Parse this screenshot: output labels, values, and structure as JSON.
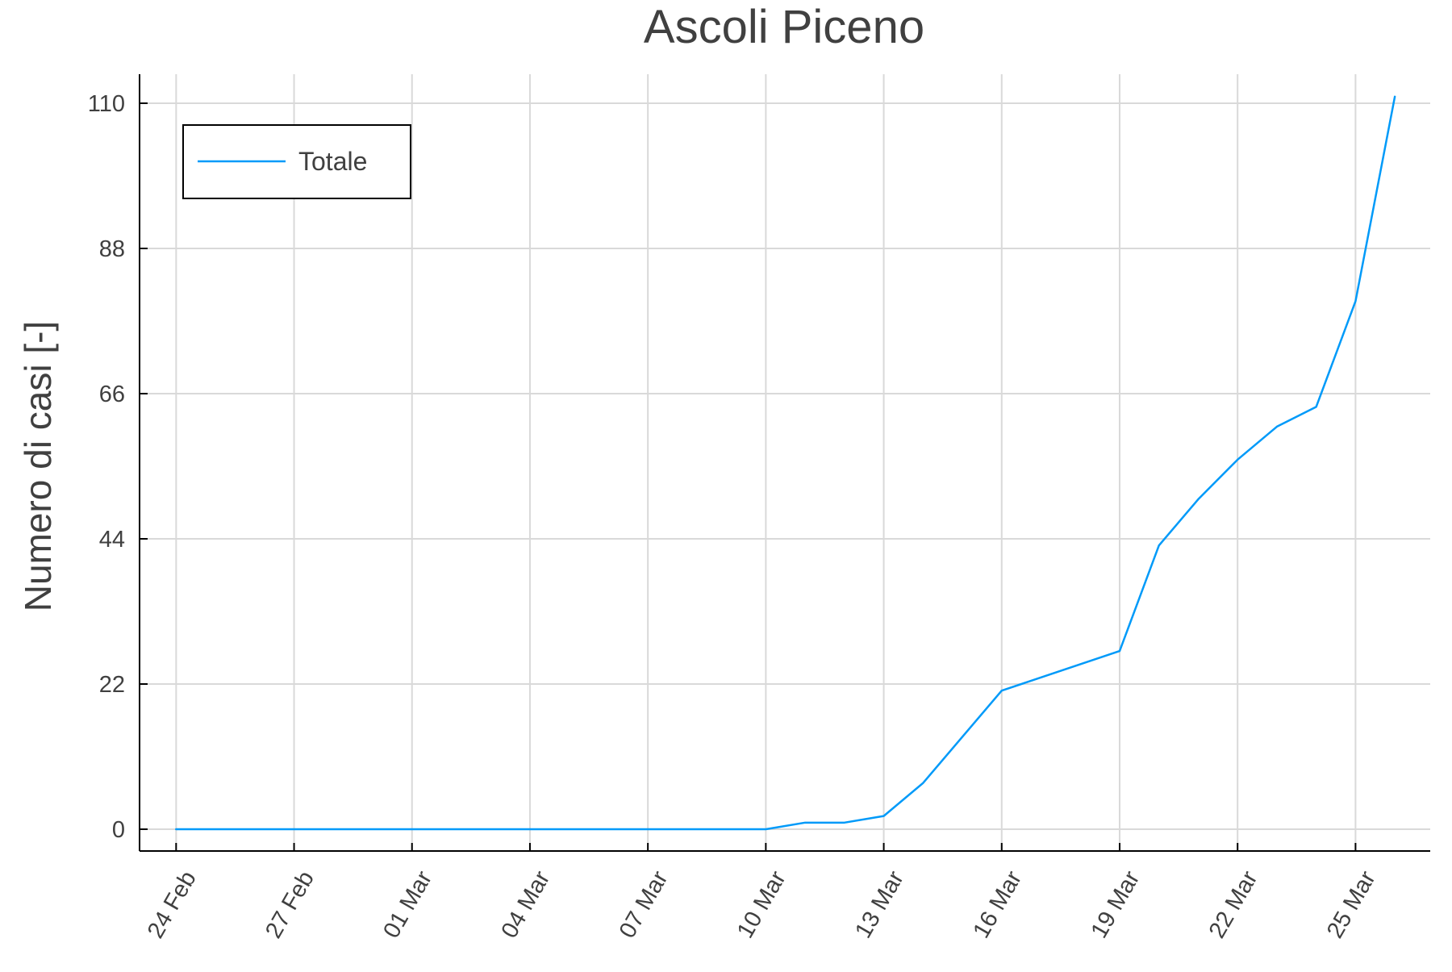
{
  "chart_data": {
    "type": "line",
    "title": "Ascoli Piceno",
    "xlabel": "",
    "ylabel": "Numero di casi [-]",
    "x_tick_labels": [
      "24 Feb",
      "27 Feb",
      "01 Mar",
      "04 Mar",
      "07 Mar",
      "10 Mar",
      "13 Mar",
      "16 Mar",
      "19 Mar",
      "22 Mar",
      "25 Mar"
    ],
    "x_tick_day_index": [
      0,
      3,
      6,
      9,
      12,
      15,
      18,
      21,
      24,
      27,
      30
    ],
    "y_ticks": [
      0,
      22,
      44,
      66,
      88,
      110
    ],
    "ylim": [
      -3.3,
      114.4
    ],
    "xlim": [
      -0.93,
      31.9
    ],
    "grid": true,
    "legend_position": "top-left",
    "series": [
      {
        "name": "Totale",
        "color": "#009af9",
        "x": [
          0,
          1,
          2,
          3,
          4,
          5,
          6,
          7,
          8,
          9,
          10,
          11,
          12,
          13,
          14,
          15,
          16,
          17,
          18,
          19,
          20,
          21,
          22,
          23,
          24,
          25,
          26,
          27,
          28,
          29,
          30,
          31
        ],
        "values": [
          0,
          0,
          0,
          0,
          0,
          0,
          0,
          0,
          0,
          0,
          0,
          0,
          0,
          0,
          0,
          0,
          1,
          1,
          2,
          7,
          14,
          21,
          23,
          25,
          27,
          43,
          50,
          56,
          61,
          64,
          80,
          111
        ]
      }
    ]
  }
}
